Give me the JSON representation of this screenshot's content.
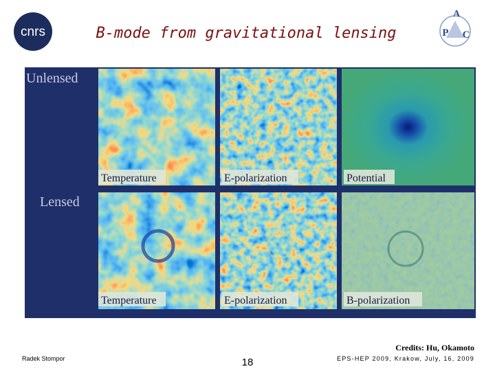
{
  "logos": {
    "left": "cnrs",
    "right": [
      "A",
      "P",
      "C"
    ]
  },
  "title": "B-mode from gravitational lensing",
  "figure": {
    "rows": [
      {
        "label": "Unlensed",
        "panels": [
          "Temperature",
          "E-polarization",
          "Potential"
        ]
      },
      {
        "label": "Lensed",
        "panels": [
          "Temperature",
          "E-polarization",
          "B-polarization"
        ]
      }
    ]
  },
  "credits": "Credits: Hu, Okamoto",
  "footer": {
    "author": "Radek Stompor",
    "page": 18,
    "event": "EPS-HEP 2009, Krakow, July, 16, 2009"
  }
}
